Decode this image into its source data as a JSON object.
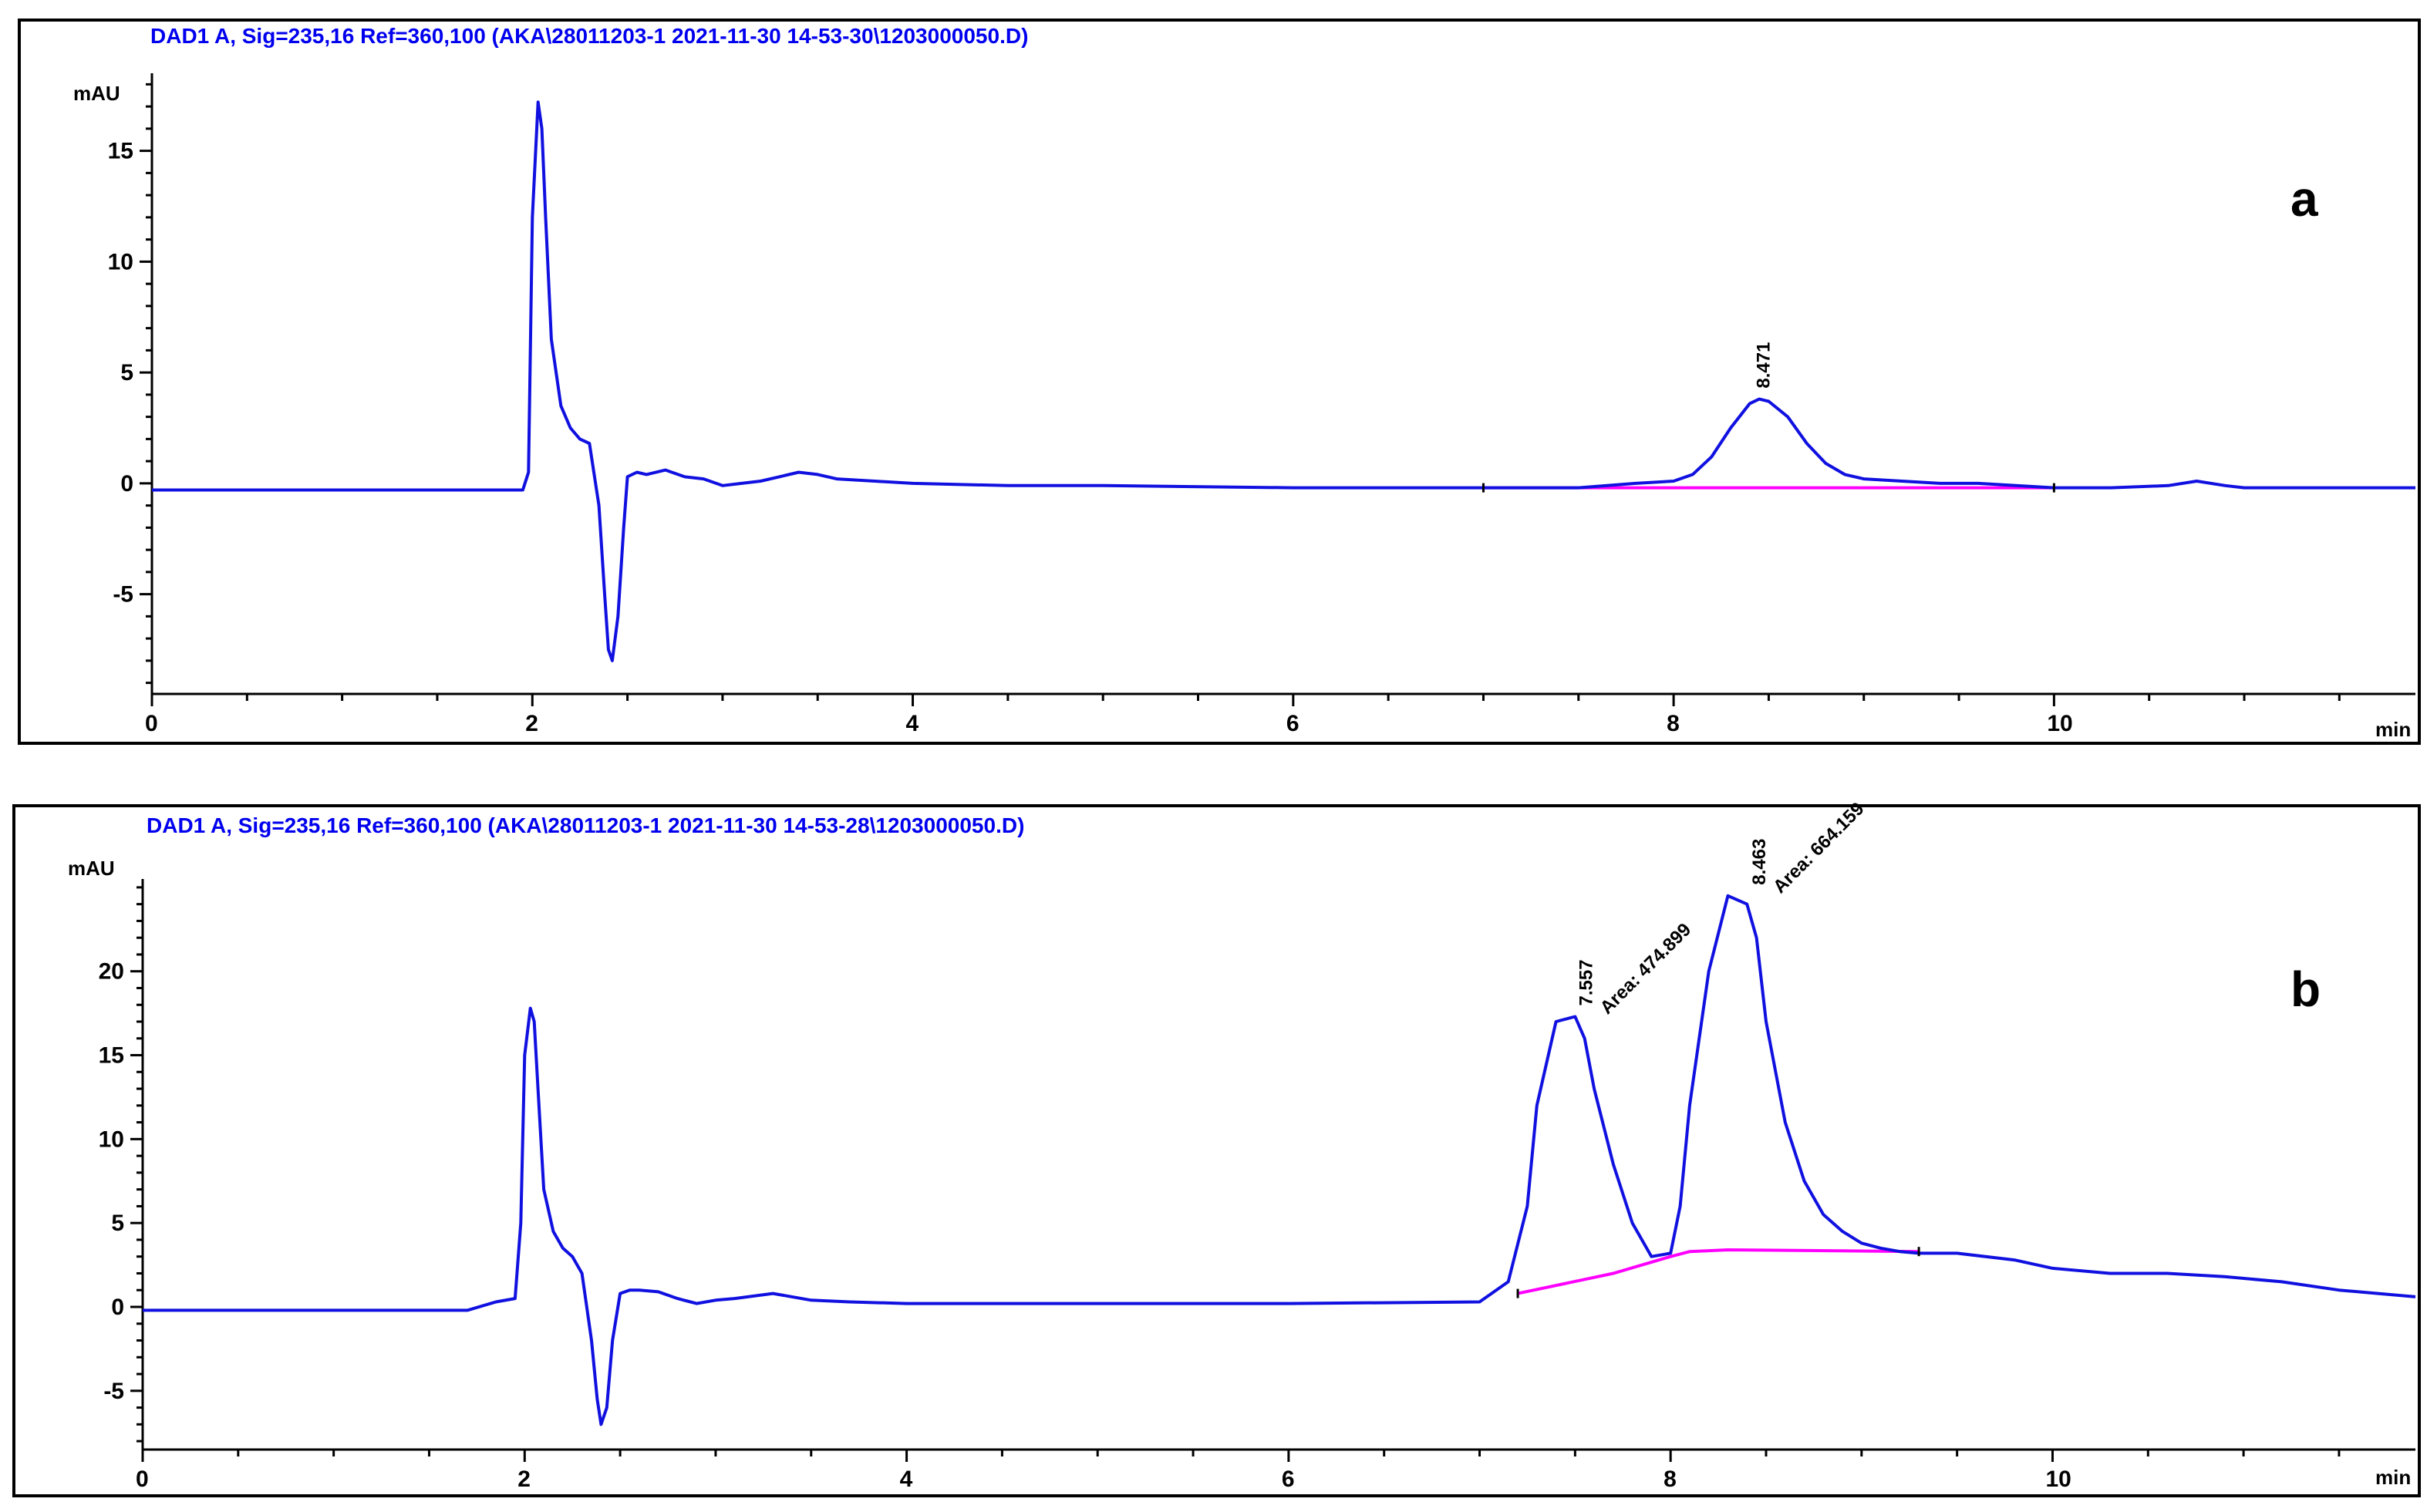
{
  "colors": {
    "trace": "#1010e0",
    "baseline": "#ff00ff",
    "header": "#0000ee"
  },
  "chart_data": [
    {
      "type": "line",
      "panel_label": "a",
      "header": "DAD1 A, Sig=235,16 Ref=360,100 (AKA\\28011203-1 2021-11-30 14-53-30\\1203000050.D)",
      "y_unit": "mAU",
      "x_unit": "min",
      "xlim": [
        0,
        11.9
      ],
      "ylim": [
        -9.5,
        18.5
      ],
      "x_ticks": [
        0,
        2,
        4,
        6,
        8,
        10
      ],
      "y_ticks": [
        -5,
        0,
        5,
        10,
        15
      ],
      "y_tick_labels": [
        "-5",
        "0",
        "5",
        "10",
        "15"
      ],
      "series": [
        {
          "x": [
            0,
            1.5,
            1.9,
            1.95,
            1.98,
            2.0,
            2.03,
            2.05,
            2.07,
            2.1,
            2.15,
            2.2,
            2.25,
            2.3,
            2.35,
            2.38,
            2.4,
            2.42,
            2.45,
            2.48,
            2.5,
            2.55,
            2.6,
            2.7,
            2.8,
            2.9,
            3.0,
            3.1,
            3.2,
            3.3,
            3.4,
            3.5,
            3.6,
            3.8,
            4.0,
            4.5,
            5.0,
            6.0,
            7.0,
            7.5,
            7.8,
            8.0,
            8.1,
            8.2,
            8.3,
            8.4,
            8.45,
            8.5,
            8.6,
            8.7,
            8.8,
            8.9,
            9.0,
            9.2,
            9.4,
            9.6,
            9.8,
            10.0,
            10.3,
            10.6,
            10.75,
            10.9,
            11.0,
            11.9
          ],
          "y": [
            -0.3,
            -0.3,
            -0.3,
            -0.3,
            0.5,
            12.0,
            17.2,
            16.0,
            12.0,
            6.5,
            3.5,
            2.5,
            2.0,
            1.8,
            -1.0,
            -5.0,
            -7.5,
            -8.0,
            -6.0,
            -2.0,
            0.3,
            0.5,
            0.4,
            0.6,
            0.3,
            0.2,
            -0.1,
            0.0,
            0.1,
            0.3,
            0.5,
            0.4,
            0.2,
            0.1,
            0.0,
            -0.1,
            -0.1,
            -0.2,
            -0.2,
            -0.2,
            0.0,
            0.1,
            0.4,
            1.2,
            2.5,
            3.6,
            3.8,
            3.7,
            3.0,
            1.8,
            0.9,
            0.4,
            0.2,
            0.1,
            0.0,
            0.0,
            -0.1,
            -0.2,
            -0.2,
            -0.1,
            0.1,
            -0.1,
            -0.2,
            -0.2
          ]
        }
      ],
      "baselines": [
        {
          "x": [
            7.0,
            10.0
          ],
          "y": [
            -0.2,
            -0.2
          ]
        }
      ],
      "peak_labels": [
        {
          "x": 8.471,
          "y": 3.8,
          "text": "8.471"
        }
      ]
    },
    {
      "type": "line",
      "panel_label": "b",
      "header": "DAD1 A, Sig=235,16 Ref=360,100 (AKA\\28011203-1 2021-11-30 14-53-28\\1203000050.D)",
      "y_unit": "mAU",
      "x_unit": "min",
      "xlim": [
        0,
        11.9
      ],
      "ylim": [
        -8.5,
        25.5
      ],
      "x_ticks": [
        0,
        2,
        4,
        6,
        8,
        10
      ],
      "y_ticks": [
        -5,
        0,
        5,
        10,
        15,
        20
      ],
      "y_tick_labels": [
        "-5",
        "0",
        "5",
        "10",
        "15",
        "20"
      ],
      "series": [
        {
          "x": [
            0,
            1.7,
            1.85,
            1.95,
            1.98,
            2.0,
            2.03,
            2.05,
            2.07,
            2.1,
            2.15,
            2.2,
            2.25,
            2.3,
            2.35,
            2.38,
            2.4,
            2.43,
            2.46,
            2.5,
            2.55,
            2.6,
            2.7,
            2.8,
            2.9,
            3.0,
            3.1,
            3.3,
            3.5,
            3.7,
            4.0,
            4.5,
            5.0,
            6.0,
            7.0,
            7.15,
            7.25,
            7.3,
            7.4,
            7.5,
            7.55,
            7.6,
            7.7,
            7.8,
            7.9,
            8.0,
            8.05,
            8.1,
            8.2,
            8.3,
            8.4,
            8.45,
            8.5,
            8.6,
            8.7,
            8.8,
            8.9,
            9.0,
            9.1,
            9.2,
            9.3,
            9.5,
            9.8,
            10.0,
            10.3,
            10.6,
            10.9,
            11.2,
            11.5,
            11.9
          ],
          "y": [
            -0.2,
            -0.2,
            0.3,
            0.5,
            5.0,
            15.0,
            17.8,
            17.0,
            13.0,
            7.0,
            4.5,
            3.5,
            3.0,
            2.0,
            -2.0,
            -5.5,
            -7.0,
            -6.0,
            -2.0,
            0.8,
            1.0,
            1.0,
            0.9,
            0.5,
            0.2,
            0.4,
            0.5,
            0.8,
            0.4,
            0.3,
            0.2,
            0.2,
            0.2,
            0.2,
            0.3,
            1.5,
            6.0,
            12.0,
            17.0,
            17.3,
            16.0,
            13.0,
            8.5,
            5.0,
            3.0,
            3.2,
            6.0,
            12.0,
            20.0,
            24.5,
            24.0,
            22.0,
            17.0,
            11.0,
            7.5,
            5.5,
            4.5,
            3.8,
            3.5,
            3.3,
            3.2,
            3.2,
            2.8,
            2.3,
            2.0,
            2.0,
            1.8,
            1.5,
            1.0,
            0.6
          ]
        }
      ],
      "baselines": [
        {
          "x": [
            7.2,
            7.7,
            8.0,
            8.1,
            8.3,
            9.3
          ],
          "y": [
            0.8,
            2.0,
            3.0,
            3.3,
            3.4,
            3.3
          ]
        }
      ],
      "peak_labels": [
        {
          "x": 7.557,
          "y": 17.3,
          "text": "7.557",
          "note": "Area: 474.899"
        },
        {
          "x": 8.463,
          "y": 24.5,
          "text": "8.463",
          "note": "Area: 664.159"
        }
      ]
    }
  ]
}
